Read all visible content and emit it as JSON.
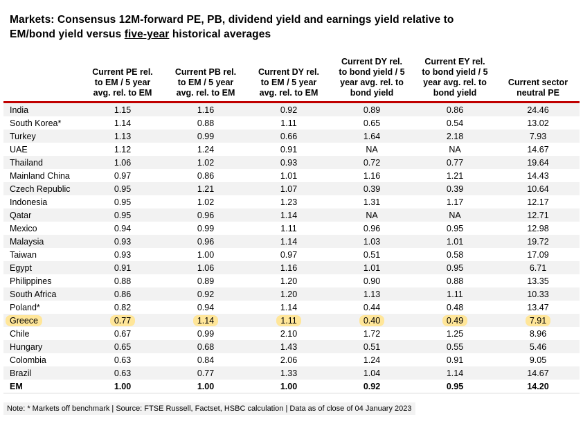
{
  "title": {
    "line1": "Markets: Consensus 12M-forward PE, PB, dividend yield and earnings yield relative to",
    "line2_pre": "EM/bond yield versus ",
    "line2_underline": "five-year",
    "line2_post": " historical averages"
  },
  "colors": {
    "header_rule": "#c00000",
    "row_stripe": "#f2f2f2",
    "highlight": "#ffe699",
    "note_background": "#f2f2f2"
  },
  "table": {
    "headers": [
      "",
      "Current PE rel.\nto EM / 5 year\navg. rel. to EM",
      "Current PB rel.\nto EM / 5 year\navg. rel. to EM",
      "Current DY rel.\nto EM / 5 year\navg. rel. to EM",
      "Current DY rel.\nto bond yield / 5\nyear avg. rel. to\nbond yield",
      "Current EY rel.\nto bond yield / 5\nyear avg. rel. to\nbond yield",
      "Current sector\nneutral PE"
    ],
    "rows": [
      {
        "market": "India",
        "values": [
          "1.15",
          "1.16",
          "0.92",
          "0.89",
          "0.86",
          "24.46"
        ],
        "highlight": false,
        "bold": false
      },
      {
        "market": "South Korea*",
        "values": [
          "1.14",
          "0.88",
          "1.11",
          "0.65",
          "0.54",
          "13.02"
        ],
        "highlight": false,
        "bold": false
      },
      {
        "market": "Turkey",
        "values": [
          "1.13",
          "0.99",
          "0.66",
          "1.64",
          "2.18",
          "7.93"
        ],
        "highlight": false,
        "bold": false
      },
      {
        "market": "UAE",
        "values": [
          "1.12",
          "1.24",
          "0.91",
          "NA",
          "NA",
          "14.67"
        ],
        "highlight": false,
        "bold": false
      },
      {
        "market": "Thailand",
        "values": [
          "1.06",
          "1.02",
          "0.93",
          "0.72",
          "0.77",
          "19.64"
        ],
        "highlight": false,
        "bold": false
      },
      {
        "market": "Mainland China",
        "values": [
          "0.97",
          "0.86",
          "1.01",
          "1.16",
          "1.21",
          "14.43"
        ],
        "highlight": false,
        "bold": false
      },
      {
        "market": "Czech Republic",
        "values": [
          "0.95",
          "1.21",
          "1.07",
          "0.39",
          "0.39",
          "10.64"
        ],
        "highlight": false,
        "bold": false
      },
      {
        "market": "Indonesia",
        "values": [
          "0.95",
          "1.02",
          "1.23",
          "1.31",
          "1.17",
          "12.17"
        ],
        "highlight": false,
        "bold": false
      },
      {
        "market": "Qatar",
        "values": [
          "0.95",
          "0.96",
          "1.14",
          "NA",
          "NA",
          "12.71"
        ],
        "highlight": false,
        "bold": false
      },
      {
        "market": "Mexico",
        "values": [
          "0.94",
          "0.99",
          "1.11",
          "0.96",
          "0.95",
          "12.98"
        ],
        "highlight": false,
        "bold": false
      },
      {
        "market": "Malaysia",
        "values": [
          "0.93",
          "0.96",
          "1.14",
          "1.03",
          "1.01",
          "19.72"
        ],
        "highlight": false,
        "bold": false
      },
      {
        "market": "Taiwan",
        "values": [
          "0.93",
          "1.00",
          "0.97",
          "0.51",
          "0.58",
          "17.09"
        ],
        "highlight": false,
        "bold": false
      },
      {
        "market": "Egypt",
        "values": [
          "0.91",
          "1.06",
          "1.16",
          "1.01",
          "0.95",
          "6.71"
        ],
        "highlight": false,
        "bold": false
      },
      {
        "market": "Philippines",
        "values": [
          "0.88",
          "0.89",
          "1.20",
          "0.90",
          "0.88",
          "13.35"
        ],
        "highlight": false,
        "bold": false
      },
      {
        "market": "South Africa",
        "values": [
          "0.86",
          "0.92",
          "1.20",
          "1.13",
          "1.11",
          "10.33"
        ],
        "highlight": false,
        "bold": false
      },
      {
        "market": "Poland*",
        "values": [
          "0.82",
          "0.94",
          "1.14",
          "0.44",
          "0.48",
          "13.47"
        ],
        "highlight": false,
        "bold": false
      },
      {
        "market": "Greece",
        "values": [
          "0.77",
          "1.14",
          "1.11",
          "0.40",
          "0.49",
          "7.91"
        ],
        "highlight": true,
        "bold": false
      },
      {
        "market": "Chile",
        "values": [
          "0.67",
          "0.99",
          "2.10",
          "1.72",
          "1.25",
          "8.96"
        ],
        "highlight": false,
        "bold": false
      },
      {
        "market": "Hungary",
        "values": [
          "0.65",
          "0.68",
          "1.43",
          "0.51",
          "0.55",
          "5.46"
        ],
        "highlight": false,
        "bold": false
      },
      {
        "market": "Colombia",
        "values": [
          "0.63",
          "0.84",
          "2.06",
          "1.24",
          "0.91",
          "9.05"
        ],
        "highlight": false,
        "bold": false
      },
      {
        "market": "Brazil",
        "values": [
          "0.63",
          "0.77",
          "1.33",
          "1.04",
          "1.14",
          "14.67"
        ],
        "highlight": false,
        "bold": false
      },
      {
        "market": "EM",
        "values": [
          "1.00",
          "1.00",
          "1.00",
          "0.92",
          "0.95",
          "14.20"
        ],
        "highlight": false,
        "bold": true
      }
    ]
  },
  "note": "Note: * Markets off benchmark | Source: FTSE Russell, Factset, HSBC calculation | Data as of close of 04 January 2023"
}
